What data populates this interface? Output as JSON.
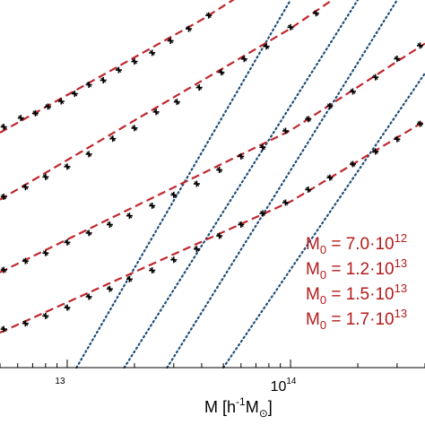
{
  "chart_data": {
    "type": "scatter",
    "title": "",
    "xlabel": {
      "base": "M [h",
      "sup": "-1",
      "mid": "M",
      "sub": "⊙",
      "end": "]"
    },
    "ylabel": "",
    "xscale": "log",
    "yscale": "log",
    "xlim": [
      5000000000000.0,
      400000000000000.0
    ],
    "ylim": [
      1.0,
      100.0
    ],
    "x_ticks": [
      {
        "value": 10000000000000.0,
        "label_base": "",
        "label_sup": "13"
      },
      {
        "value": 100000000000000.0,
        "label_base": "10",
        "label_sup": "14"
      }
    ],
    "legend": {
      "placement": "right",
      "entries": [
        {
          "base": "M",
          "sub": "0",
          "text": " = 7.0·10",
          "sup": "12"
        },
        {
          "base": "M",
          "sub": "0",
          "text": " = 1.2·10",
          "sup": "13"
        },
        {
          "base": "M",
          "sub": "0",
          "text": " = 1.5·10",
          "sup": "13"
        },
        {
          "base": "M",
          "sub": "0",
          "text": " = 1.7·10",
          "sup": "13"
        }
      ]
    },
    "series": [
      {
        "M0": 7000000000000.0,
        "points": [
          [
            5200000000000.0,
            20.4
          ],
          [
            6200000000000.0,
            22.8
          ],
          [
            7200000000000.0,
            24.2
          ],
          [
            8200000000000.0,
            26.3
          ],
          [
            9400000000000.0,
            28.1
          ],
          [
            10800000000000.0,
            30.9
          ],
          [
            12500000000000.0,
            34.6
          ],
          [
            14500000000000.0,
            36.6
          ],
          [
            17000000000000.0,
            41.6
          ],
          [
            20000000000000.0,
            46.3
          ],
          [
            24000000000000.0,
            51.6
          ],
          [
            29000000000000.0,
            60.0
          ],
          [
            35000000000000.0,
            69.7
          ],
          [
            43000000000000.0,
            82.4
          ]
        ],
        "fit": [
          [
            5000000000000.0,
            19.0
          ],
          [
            40000000000000.0,
            78.0
          ],
          [
            100000000000000.0,
            158.0
          ]
        ],
        "asymptote": [
          [
            11000000000000.0,
            1.0
          ],
          [
            100000000000000.0,
            100.0
          ]
        ]
      },
      {
        "M0": 12000000000000.0,
        "points": [
          [
            5200000000000.0,
            8.5
          ],
          [
            6500000000000.0,
            9.6
          ],
          [
            8000000000000.0,
            10.9
          ],
          [
            10000000000000.0,
            12.4
          ],
          [
            12500000000000.0,
            14.5
          ],
          [
            16000000000000.0,
            17.6
          ],
          [
            20000000000000.0,
            20.1
          ],
          [
            25000000000000.0,
            24.6
          ],
          [
            31000000000000.0,
            27.9
          ],
          [
            39000000000000.0,
            33.4
          ],
          [
            49000000000000.0,
            40.4
          ],
          [
            62000000000000.0,
            47.8
          ],
          [
            78000000000000.0,
            55.9
          ],
          [
            100000000000000.0,
            71.1
          ],
          [
            130000000000000.0,
            84.7
          ],
          [
            160000000000000.0,
            105.0
          ]
        ],
        "fit": [
          [
            5000000000000.0,
            8.2
          ],
          [
            100000000000000.0,
            70.0
          ],
          [
            250000000000000.0,
            150.0
          ]
        ],
        "asymptote": [
          [
            18000000000000.0,
            1.0
          ],
          [
            200000000000000.0,
            100.0
          ]
        ]
      },
      {
        "M0": 15000000000000.0,
        "points": [
          [
            5200000000000.0,
            3.4
          ],
          [
            6500000000000.0,
            3.8
          ],
          [
            8000000000000.0,
            4.2
          ],
          [
            10000000000000.0,
            4.8
          ],
          [
            12500000000000.0,
            5.4
          ],
          [
            15500000000000.0,
            6.0
          ],
          [
            19000000000000.0,
            6.7
          ],
          [
            24000000000000.0,
            7.6
          ],
          [
            30000000000000.0,
            8.7
          ],
          [
            38000000000000.0,
            10.0
          ],
          [
            48000000000000.0,
            11.9
          ],
          [
            60000000000000.0,
            14.1
          ],
          [
            75000000000000.0,
            15.8
          ],
          [
            95000000000000.0,
            19.4
          ],
          [
            120000000000000.0,
            22.5
          ],
          [
            150000000000000.0,
            26.5
          ],
          [
            190000000000000.0,
            31.8
          ],
          [
            240000000000000.0,
            38.0
          ],
          [
            300000000000000.0,
            47.9
          ],
          [
            380000000000000.0,
            56.5
          ]
        ],
        "fit": [
          [
            5000000000000.0,
            3.3
          ],
          [
            100000000000000.0,
            19.5
          ],
          [
            400000000000000.0,
            58.0
          ]
        ],
        "asymptote": [
          [
            28000000000000.0,
            1.0
          ],
          [
            300000000000000.0,
            100.0
          ]
        ]
      },
      {
        "M0": 17000000000000.0,
        "points": [
          [
            5200000000000.0,
            1.62
          ],
          [
            6500000000000.0,
            1.74
          ],
          [
            8000000000000.0,
            1.91
          ],
          [
            10000000000000.0,
            2.12
          ],
          [
            12500000000000.0,
            2.43
          ],
          [
            15500000000000.0,
            2.68
          ],
          [
            19000000000000.0,
            3.03
          ],
          [
            24000000000000.0,
            3.38
          ],
          [
            30000000000000.0,
            3.86
          ],
          [
            38000000000000.0,
            4.42
          ],
          [
            48000000000000.0,
            5.21
          ],
          [
            60000000000000.0,
            6.0
          ],
          [
            75000000000000.0,
            6.9
          ],
          [
            95000000000000.0,
            7.9
          ],
          [
            120000000000000.0,
            9.3
          ],
          [
            150000000000000.0,
            10.8
          ],
          [
            190000000000000.0,
            12.8
          ],
          [
            240000000000000.0,
            15.0
          ],
          [
            300000000000000.0,
            17.5
          ],
          [
            380000000000000.0,
            21.2
          ]
        ],
        "fit": [
          [
            5000000000000.0,
            1.55
          ],
          [
            100000000000000.0,
            8.0
          ],
          [
            400000000000000.0,
            22.0
          ]
        ],
        "asymptote": [
          [
            50000000000000.0,
            1.0
          ],
          [
            400000000000000.0,
            40.0
          ]
        ]
      }
    ],
    "colors": {
      "fit_line": "#c0272d",
      "asymptote_line": "#1f4e79",
      "points": "#000000",
      "legend_text": "#b31b1b"
    },
    "line_styles": {
      "fit": "dashed",
      "asymptote": "dotted"
    },
    "grid": false
  }
}
